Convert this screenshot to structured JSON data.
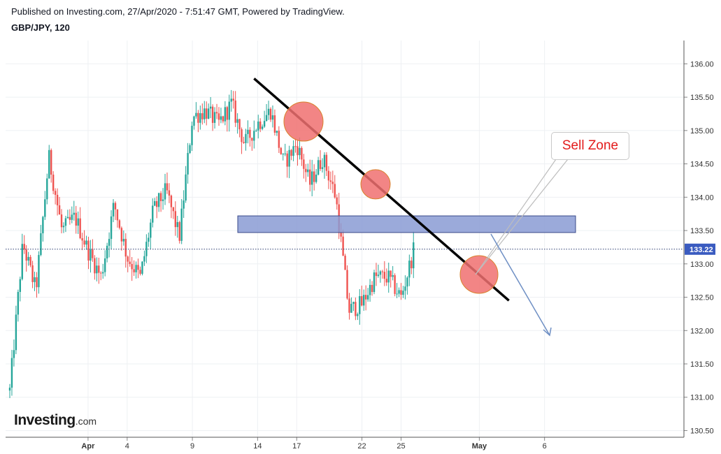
{
  "header": {
    "published": "Published on Investing.com, 27/Apr/2020 - 7:51:47 GMT, Powered by TradingView.",
    "symbol": "GBP/JPY, 120"
  },
  "logo": {
    "main": "Investing",
    "suffix": ".com"
  },
  "annotations": {
    "callout_text": "Sell Zone",
    "callout_color": "#e31b1b",
    "zone_color": "#8a9bd4",
    "trendline_color": "#000000",
    "marker_color": "#f07070",
    "arrow_color": "#6e8fc4"
  },
  "chart_data": {
    "type": "candlestick",
    "symbol": "GBP/JPY",
    "interval": "120",
    "ylim": [
      130.4,
      136.35
    ],
    "y_ticks": [
      "136.00",
      "135.50",
      "135.00",
      "134.50",
      "134.00",
      "133.50",
      "133.00",
      "132.50",
      "132.00",
      "131.50",
      "131.00",
      "130.50"
    ],
    "x_ticks": [
      "Apr",
      "4",
      "9",
      "14",
      "17",
      "22",
      "25",
      "May",
      "6"
    ],
    "last_price": "133.22",
    "up_color": "#26a69a",
    "down_color": "#ef5350",
    "close_path": [
      [
        "Mar 26",
        131.1
      ],
      [
        "Mar 27",
        133.3
      ],
      [
        "Mar 28",
        132.6
      ],
      [
        "Mar 29",
        134.6
      ],
      [
        "Mar 30",
        133.5
      ],
      [
        "Mar 31",
        133.7
      ],
      [
        "Apr 1",
        133.2
      ],
      [
        "Apr 2",
        132.8
      ],
      [
        "Apr 3",
        133.9
      ],
      [
        "Apr 4",
        133.1
      ],
      [
        "Apr 5",
        132.8
      ],
      [
        "Apr 6",
        133.8
      ],
      [
        "Apr 7",
        134.1
      ],
      [
        "Apr 8",
        133.4
      ],
      [
        "Apr 9",
        135.2
      ],
      [
        "Apr 10",
        135.3
      ],
      [
        "Apr 11",
        135.1
      ],
      [
        "Apr 12",
        135.4
      ],
      [
        "Apr 13",
        134.8
      ],
      [
        "Apr 14",
        135.1
      ],
      [
        "Apr 15",
        135.3
      ],
      [
        "Apr 16",
        134.5
      ],
      [
        "Apr 17",
        134.8
      ],
      [
        "Apr 18",
        134.2
      ],
      [
        "Apr 19",
        134.6
      ],
      [
        "Apr 20",
        134.0
      ],
      [
        "Apr 21",
        132.3
      ],
      [
        "Apr 22",
        132.4
      ],
      [
        "Apr 23",
        132.8
      ],
      [
        "Apr 24",
        132.8
      ],
      [
        "Apr 25",
        132.5
      ],
      [
        "Apr 26",
        133.22
      ]
    ],
    "sell_zone": [
      133.47,
      133.72
    ],
    "trendline": [
      [
        "Apr 14",
        135.78
      ],
      [
        "May 3",
        132.45
      ]
    ]
  }
}
